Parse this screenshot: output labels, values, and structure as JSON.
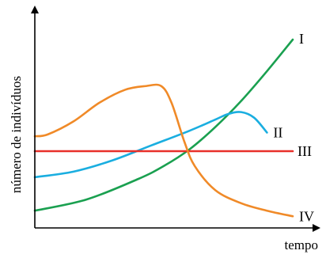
{
  "chart_data": {
    "type": "line",
    "xlabel": "tempo",
    "ylabel": "número de indivíduos",
    "xlim": [
      0,
      10
    ],
    "ylim": [
      0,
      10
    ],
    "grid": false,
    "legend": "none",
    "series": [
      {
        "name": "I",
        "color": "#1aa050",
        "x": [
          0,
          2,
          4,
          5,
          6,
          7,
          8,
          9,
          10
        ],
        "y": [
          0.8,
          1.4,
          2.5,
          3.2,
          4.1,
          5.3,
          6.7,
          8.3,
          10
        ]
      },
      {
        "name": "II",
        "color": "#1aaee0",
        "x": [
          0,
          1.5,
          3,
          4.5,
          6,
          7,
          7.5,
          8,
          8.5,
          9
        ],
        "y": [
          2.6,
          2.9,
          3.5,
          4.3,
          5.1,
          5.7,
          6.0,
          6.1,
          5.8,
          5.0
        ]
      },
      {
        "name": "III",
        "color": "#e8302a",
        "x": [
          0,
          10
        ],
        "y": [
          4,
          4
        ]
      },
      {
        "name": "IV",
        "color": "#f08a28",
        "x": [
          0,
          0.5,
          1.5,
          2.5,
          3.5,
          4.3,
          4.9,
          5.3,
          5.8,
          6.2,
          7,
          8,
          9,
          10
        ],
        "y": [
          4.8,
          4.9,
          5.6,
          6.6,
          7.3,
          7.5,
          7.5,
          6.6,
          4.5,
          3.2,
          1.9,
          1.2,
          0.8,
          0.5
        ]
      }
    ]
  }
}
